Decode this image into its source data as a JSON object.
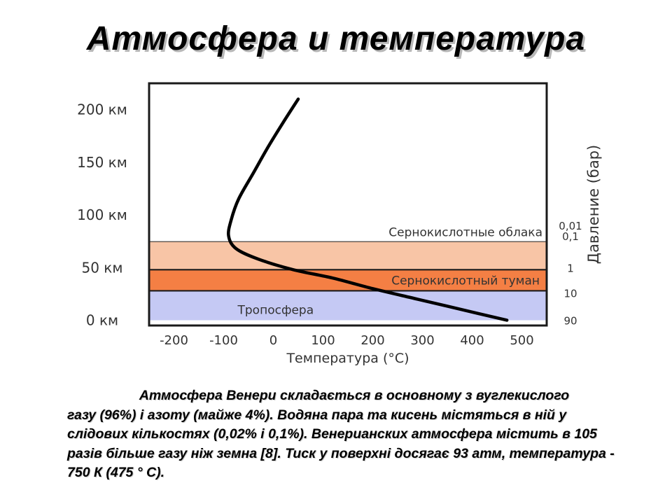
{
  "slide": {
    "title": "Атмосфера и температура",
    "caption_line1": "Атмосфера Венери складається в основному з вуглекислого",
    "caption_rest": "газу (96%) і азоту (майже 4%). Водяна пара та кисень містяться в ній у слідових кількостях (0,02% і 0,1%). Венерианских атмосфера містить в 105 разів більше газу ніж земна [8]. Тиск у поверхні досягає 93 атм, температура - 750 К (475 ° C)."
  },
  "chart_data": {
    "type": "line",
    "xlabel": "Температура (°C)",
    "ylabel": "",
    "xlim": [
      -250,
      550
    ],
    "ylim": [
      -5,
      225
    ],
    "x_ticks": [
      -200,
      -100,
      0,
      100,
      200,
      300,
      400,
      500
    ],
    "x_tick_labels": [
      "-200",
      "-100",
      "0",
      "100",
      "200",
      "300",
      "400",
      "500"
    ],
    "y_ticks": [
      0,
      50,
      100,
      150,
      200
    ],
    "y_tick_labels": [
      "0 км",
      "50 км",
      "100 км",
      "150 км",
      "200 км"
    ],
    "right_axis": {
      "label": "Давление (бар)",
      "ticks": [
        {
          "alt": 90,
          "label": "0,01"
        },
        {
          "alt": 80,
          "label": "0,1"
        },
        {
          "alt": 50,
          "label": "1"
        },
        {
          "alt": 26,
          "label": "10"
        },
        {
          "alt": 0,
          "label": "90"
        }
      ]
    },
    "bands": [
      {
        "name": "Тропосфера",
        "from": 0,
        "to": 28,
        "color": "#c5c9f4"
      },
      {
        "name": "Сернокислотный туман",
        "from": 28,
        "to": 48,
        "color": "#f47f44"
      },
      {
        "name": "",
        "from": 48,
        "to": 75,
        "color": "#f8c5a6"
      },
      {
        "name": "Сернокислотные облака",
        "from": 75,
        "to": 150,
        "color": "#ffffff"
      }
    ],
    "series": [
      {
        "color": "#000000",
        "points": [
          [
            470,
            0
          ],
          [
            380,
            10
          ],
          [
            290,
            20
          ],
          [
            200,
            30
          ],
          [
            120,
            40
          ],
          [
            40,
            48
          ],
          [
            -30,
            58
          ],
          [
            -75,
            68
          ],
          [
            -90,
            80
          ],
          [
            -85,
            95
          ],
          [
            -70,
            115
          ],
          [
            -40,
            140
          ],
          [
            -10,
            165
          ],
          [
            20,
            188
          ],
          [
            50,
            210
          ]
        ]
      }
    ],
    "grid": false
  }
}
